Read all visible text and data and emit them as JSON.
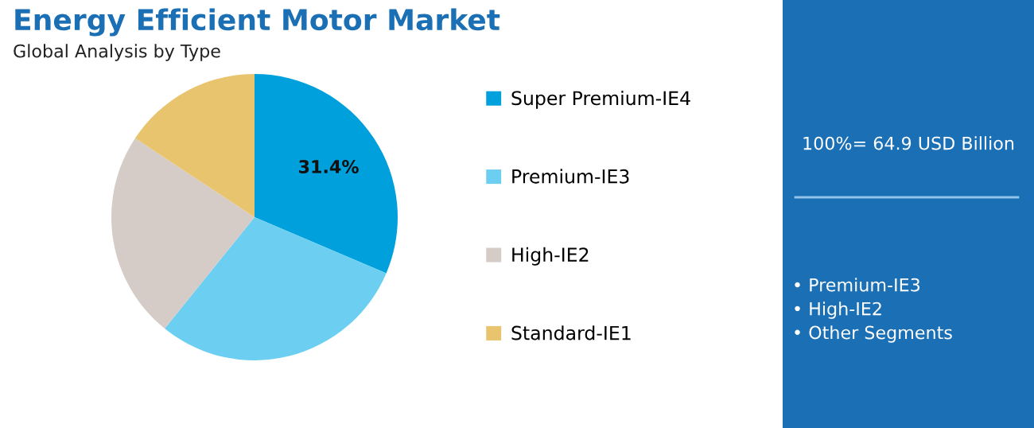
{
  "chart_data": {
    "type": "pie",
    "title": "Energy Efficient Motor Market",
    "subtitle": "Global Analysis by Type",
    "categories": [
      "Super Premium-IE4",
      "Premium-IE3",
      "High-IE2",
      "Standard-IE1"
    ],
    "values": [
      31.4,
      29.4,
      23.5,
      15.7
    ],
    "colors": [
      "#00a0dc",
      "#6ccff2",
      "#d6ccc7",
      "#e9c46e"
    ],
    "value_labels": [
      "31.4%",
      null,
      null,
      null
    ],
    "legend": "right",
    "annotations": [
      "100%= 64.9 USD Billion",
      "• Premium-IE3\n• High-IE2\n• Other Segments"
    ]
  }
}
